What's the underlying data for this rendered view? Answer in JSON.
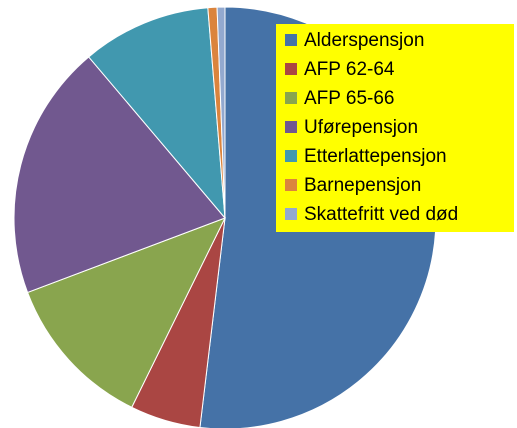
{
  "chart_data": {
    "type": "pie",
    "categories": [
      "Alderspensjon",
      "AFP 62-64",
      "AFP 65-66",
      "Uførepensjon",
      "Etterlattepensjon",
      "Barnepensjon",
      "Skattefritt ved død"
    ],
    "values": [
      52,
      5.4,
      12,
      19.6,
      9.9,
      0.7,
      0.6
    ],
    "colors": [
      "#4572a7",
      "#aa4643",
      "#89a54e",
      "#71588f",
      "#4198af",
      "#db843d",
      "#93a9cf"
    ],
    "legend": "top-right"
  }
}
